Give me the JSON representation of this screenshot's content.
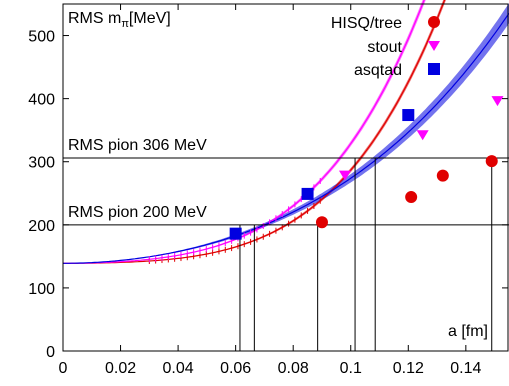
{
  "chart_data": {
    "type": "scatter",
    "title": "",
    "ylabel": "RMS m",
    "ylabel_sub": "π",
    "ylabel_unit": "[MeV]",
    "xlabel": "a [fm]",
    "xlim": [
      0,
      0.155
    ],
    "ylim": [
      0,
      550
    ],
    "x_ticks": [
      "0",
      "0.02",
      "0.04",
      "0.06",
      "0.08",
      "0.1",
      "0.12",
      "0.14"
    ],
    "y_ticks": [
      "0",
      "100",
      "200",
      "300",
      "400",
      "500"
    ],
    "grid": false,
    "legend": "top-right",
    "legend_entries": [
      "HISQ/tree",
      "stout",
      "asqtad"
    ],
    "reference_lines": [
      {
        "label": "RMS pion 306 MeV",
        "y": 306
      },
      {
        "label": "RMS pion 200 MeV",
        "y": 200
      }
    ],
    "vertical_markers": [
      0.0615,
      0.0665,
      0.0885,
      0.1015,
      0.1085,
      0.149
    ],
    "series": [
      {
        "name": "HISQ/tree",
        "color": "#e00000",
        "marker": "circle",
        "x": [
          0.09,
          0.121,
          0.132,
          0.149
        ],
        "y": [
          204,
          244,
          278,
          301
        ],
        "fit": {
          "a2": 2970,
          "a4": 1180000,
          "band": 4
        }
      },
      {
        "name": "stout",
        "color": "#ff00ff",
        "marker": "triangle-down",
        "x": [
          0.098,
          0.125,
          0.151
        ],
        "y": [
          278,
          342,
          396
        ],
        "fit": {
          "a2": 5860,
          "a4": 1310000,
          "band": 5
        }
      },
      {
        "name": "asqtad",
        "color": "#0000e0",
        "marker": "square",
        "x": [
          0.06,
          0.085,
          0.12
        ],
        "y": [
          186,
          249,
          374
        ],
        "fit": {
          "a2": 11330,
          "a4": 215000,
          "band": 8
        }
      }
    ],
    "fit_start_y": 139
  }
}
